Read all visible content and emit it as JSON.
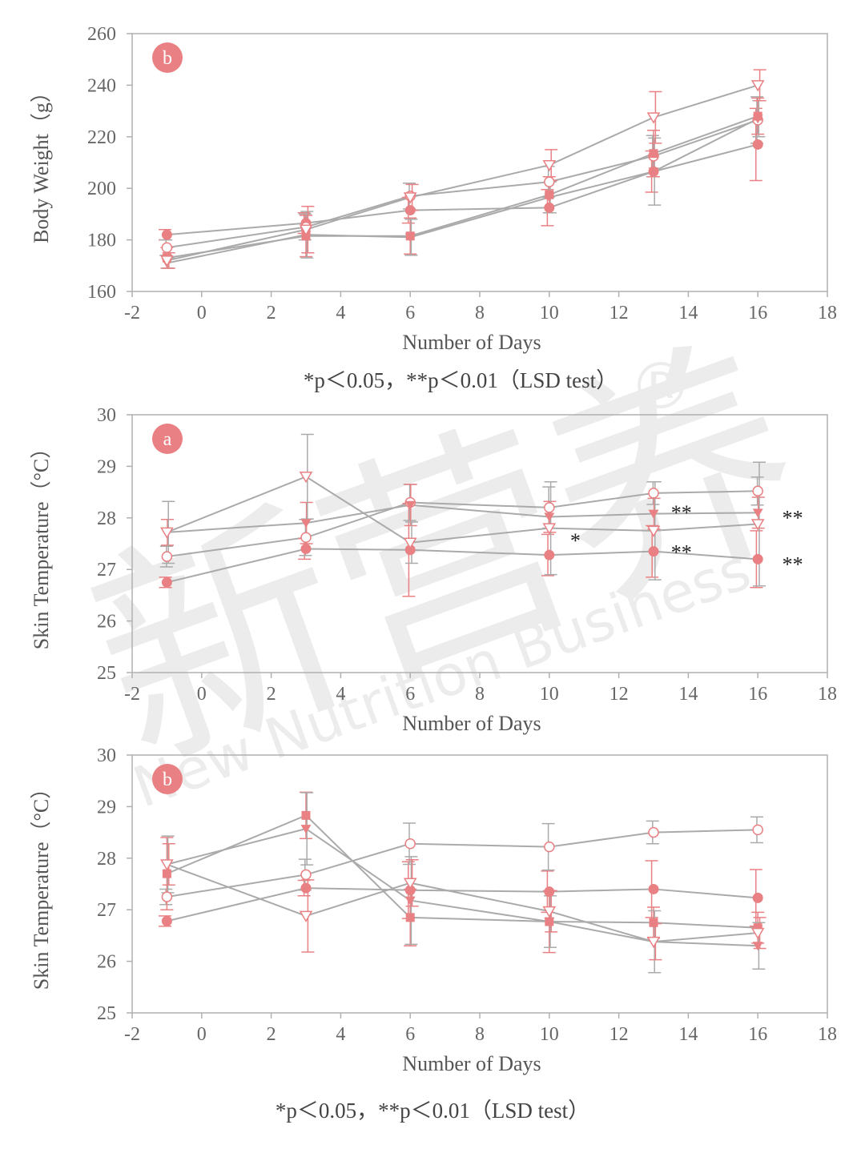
{
  "notes": {
    "top": "*p＜0.05，**p＜0.01（LSD test）",
    "bottom": "*p＜0.05，**p＜0.01（LSD test）"
  },
  "watermark": {
    "main": "新营养",
    "sub": "New Nutrition Business",
    "mark": "®"
  },
  "colors": {
    "line": "#aaaaaa",
    "marker": "#e98083",
    "errorbar_pink": "#e98083",
    "errorbar_gray": "#aaaaaa",
    "badge": "#e98083",
    "frame": "#b0b0b0"
  },
  "chart_data": [
    {
      "type": "line",
      "panel_label": "b",
      "xlabel": "Number of Days",
      "ylabel": "Body Weight（g）",
      "xlim": [
        -2,
        18
      ],
      "ylim": [
        160,
        260
      ],
      "xticks": [
        -2,
        0,
        2,
        4,
        6,
        8,
        10,
        12,
        14,
        16,
        18
      ],
      "yticks": [
        160,
        180,
        200,
        220,
        240,
        260
      ],
      "grid": false,
      "x": [
        -1,
        3,
        6,
        10,
        13,
        16
      ],
      "series": [
        {
          "marker": "filled-circle",
          "values": [
            182,
            186.5,
            191.5,
            192.5,
            206.5,
            217
          ],
          "err": [
            2,
            4,
            5,
            7,
            8,
            14
          ]
        },
        {
          "marker": "open-circle",
          "values": [
            177,
            185,
            197,
            202.5,
            212.5,
            226.5
          ],
          "err": [
            3,
            5,
            5,
            6,
            8,
            9
          ]
        },
        {
          "marker": "filled-square",
          "values": [
            173,
            181.5,
            181.5,
            197.5,
            213.5,
            228
          ],
          "err": [
            4,
            8,
            7,
            7,
            9,
            7
          ]
        },
        {
          "marker": "filled-triangle",
          "values": [
            171,
            182,
            181,
            196.5,
            206.5,
            227
          ],
          "err": [
            2,
            9,
            7,
            6,
            13,
            7
          ]
        },
        {
          "marker": "open-triangle",
          "values": [
            172,
            184,
            196.5,
            209,
            227.5,
            240
          ],
          "err": [
            3,
            9,
            5,
            6,
            10,
            6
          ]
        }
      ]
    },
    {
      "type": "line",
      "panel_label": "a",
      "xlabel": "Number of Days",
      "ylabel": "Skin Temperature（°C）",
      "xlim": [
        -2,
        18
      ],
      "ylim": [
        25,
        30
      ],
      "xticks": [
        -2,
        0,
        2,
        4,
        6,
        8,
        10,
        12,
        14,
        16,
        18
      ],
      "yticks": [
        25,
        26,
        27,
        28,
        29,
        30
      ],
      "grid": false,
      "x": [
        -1,
        3,
        6,
        10,
        13,
        16
      ],
      "series": [
        {
          "marker": "filled-circle",
          "values": [
            26.75,
            27.4,
            27.38,
            27.28,
            27.35,
            27.2
          ],
          "err": [
            0.1,
            0.2,
            0.9,
            0.4,
            0.5,
            0.55
          ]
        },
        {
          "marker": "open-circle",
          "values": [
            27.25,
            27.62,
            28.3,
            28.2,
            28.48,
            28.52
          ],
          "err": [
            0.2,
            0.35,
            0.35,
            0.4,
            0.22,
            0.27
          ]
        },
        {
          "marker": "filled-triangle",
          "values": [
            27.72,
            27.9,
            28.25,
            28.02,
            28.08,
            28.1
          ],
          "err": [
            0.25,
            0.4,
            0.4,
            0.3,
            0.3,
            0.3
          ]
        },
        {
          "marker": "open-triangle",
          "values": [
            27.72,
            28.8,
            27.52,
            27.8,
            27.75,
            27.88
          ],
          "err": [
            0.6,
            0.82,
            0.4,
            0.9,
            0.95,
            1.2
          ]
        }
      ],
      "annotations": [
        {
          "x": 10.6,
          "y": 27.58,
          "text": "*"
        },
        {
          "x": 13.5,
          "y": 28.12,
          "text": "**"
        },
        {
          "x": 13.5,
          "y": 27.35,
          "text": "**"
        },
        {
          "x": 16.7,
          "y": 28.02,
          "text": "**"
        },
        {
          "x": 16.7,
          "y": 27.12,
          "text": "**"
        }
      ]
    },
    {
      "type": "line",
      "panel_label": "b",
      "xlabel": "Number of Days",
      "ylabel": "Skin Temperature（°C）",
      "xlim": [
        -2,
        18
      ],
      "ylim": [
        25,
        30
      ],
      "xticks": [
        -2,
        0,
        2,
        4,
        6,
        8,
        10,
        12,
        14,
        16,
        18
      ],
      "yticks": [
        25,
        26,
        27,
        28,
        29,
        30
      ],
      "grid": false,
      "x": [
        -1,
        3,
        6,
        10,
        13,
        16
      ],
      "series": [
        {
          "marker": "filled-circle",
          "values": [
            26.78,
            27.42,
            27.38,
            27.35,
            27.4,
            27.23
          ],
          "err": [
            0.1,
            0.15,
            0.55,
            0.4,
            0.55,
            0.55
          ]
        },
        {
          "marker": "open-circle",
          "values": [
            27.25,
            27.68,
            28.28,
            28.22,
            28.5,
            28.55
          ],
          "err": [
            0.15,
            0.3,
            0.4,
            0.45,
            0.22,
            0.25
          ]
        },
        {
          "marker": "filled-square",
          "values": [
            27.7,
            28.83,
            26.85,
            26.77,
            26.75,
            26.65
          ],
          "err": [
            0.7,
            0.45,
            0.55,
            0.6,
            0.3,
            0.3
          ]
        },
        {
          "marker": "filled-triangle",
          "values": [
            27.88,
            28.57,
            27.18,
            26.77,
            26.38,
            26.3
          ],
          "err": [
            0.55,
            0.7,
            0.85,
            0.5,
            0.6,
            0.45
          ]
        },
        {
          "marker": "open-triangle",
          "values": [
            27.88,
            26.88,
            27.52,
            26.97,
            26.38,
            26.55
          ],
          "err": [
            0.4,
            0.7,
            0.45,
            0.4,
            0.35,
            0.3
          ]
        }
      ]
    }
  ]
}
